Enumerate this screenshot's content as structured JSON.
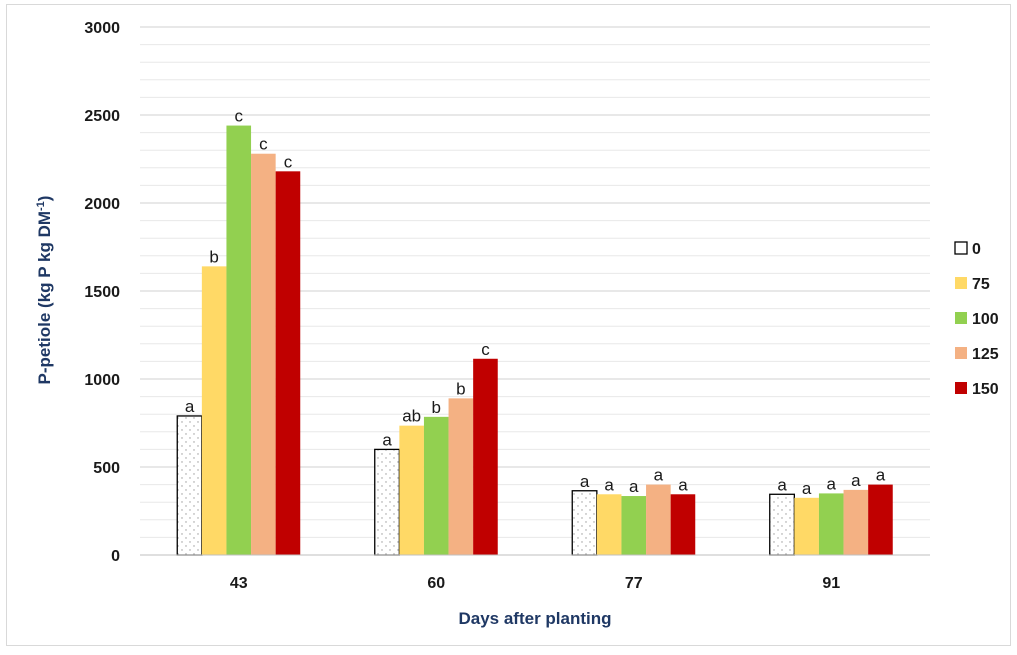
{
  "chart_data": {
    "type": "bar",
    "title": "",
    "xlabel": "Days after planting",
    "ylabel": "P-petiole (kg P kg DM",
    "ylabel_superscript": "-1",
    "ylabel_suffix": ")",
    "ylim": [
      0,
      3000
    ],
    "yticks": [
      0,
      500,
      1000,
      1500,
      2000,
      2500,
      3000
    ],
    "minor_grid_step": 100,
    "grid": true,
    "legend_position": "right",
    "categories": [
      "43",
      "60",
      "77",
      "91"
    ],
    "series": [
      {
        "name": "0",
        "color": "#ffffff",
        "pattern": "dotted",
        "values": [
          790,
          600,
          365,
          345
        ],
        "labels": [
          "a",
          "a",
          "a",
          "a"
        ]
      },
      {
        "name": "75",
        "color": "#ffd966",
        "values": [
          1640,
          735,
          345,
          325
        ],
        "labels": [
          "b",
          "ab",
          "a",
          "a"
        ]
      },
      {
        "name": "100",
        "color": "#92d050",
        "values": [
          2440,
          785,
          335,
          350
        ],
        "labels": [
          "c",
          "b",
          "a",
          "a"
        ]
      },
      {
        "name": "125",
        "color": "#f4b183",
        "values": [
          2280,
          890,
          400,
          370
        ],
        "labels": [
          "c",
          "b",
          "a",
          "a"
        ]
      },
      {
        "name": "150",
        "color": "#c00000",
        "values": [
          2180,
          1115,
          345,
          400
        ],
        "labels": [
          "c",
          "c",
          "a",
          "a"
        ]
      }
    ]
  }
}
